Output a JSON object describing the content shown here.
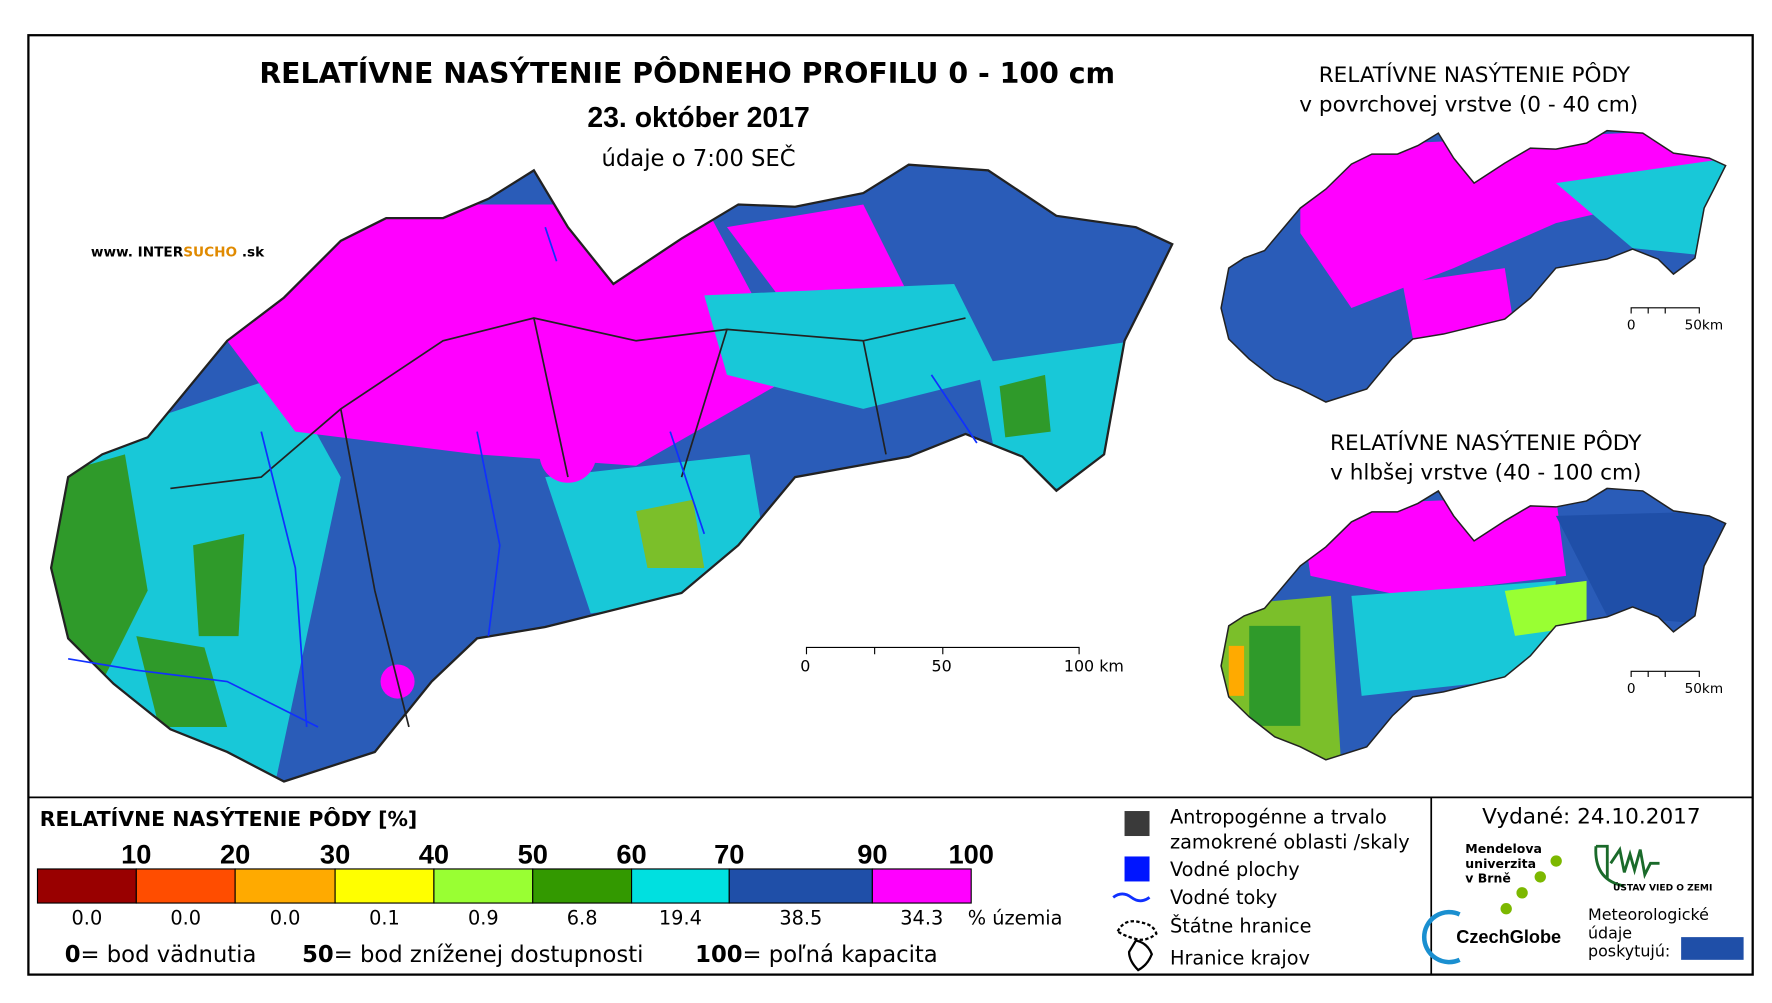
{
  "map": {
    "title": "RELATÍVNE NASÝTENIE PÔDNEHO PROFILU 0 - 100 cm",
    "date": "23. október 2017",
    "subtitle": "údaje o 7:00 SEČ",
    "source": [
      "www. INTER",
      "SUCHO",
      " .sk"
    ],
    "scale_labels": [
      "0",
      "50",
      "100 km"
    ]
  },
  "inset_top": {
    "title": "RELATÍVNE NASÝTENIE PÔDY",
    "subtitle": "v povrchovej vrstve (0 - 40 cm)",
    "scale_labels": [
      "0",
      "50km"
    ]
  },
  "inset_bottom": {
    "title": "RELATÍVNE NASÝTENIE PÔDY",
    "subtitle": "v hlbšej vrstve (40 - 100 cm)",
    "scale_labels": [
      "0",
      "50km"
    ]
  },
  "legend": {
    "title": "RELATÍVNE NASÝTENIE PÔDY [%]",
    "classes": [
      {
        "upper": "10",
        "share": "0.0",
        "color": "#990000"
      },
      {
        "upper": "20",
        "share": "0.0",
        "color": "#ff4d00"
      },
      {
        "upper": "30",
        "share": "0.0",
        "color": "#ffaa00"
      },
      {
        "upper": "40",
        "share": "0.1",
        "color": "#ffff00"
      },
      {
        "upper": "50",
        "share": "0.9",
        "color": "#99ff33"
      },
      {
        "upper": "60",
        "share": "6.8",
        "color": "#339900"
      },
      {
        "upper": "70",
        "share": "19.4",
        "color": "#00e0e0"
      },
      {
        "upper": "90",
        "share": "38.5",
        "color": "#1f4fa8"
      },
      {
        "upper": "100",
        "share": "34.3",
        "color": "#ff00ff"
      }
    ],
    "unit": "% územia",
    "notes": [
      {
        "key": "0",
        "text": "= bod vädnutia"
      },
      {
        "key": "50",
        "text": "= bod zníženej dostupnosti"
      },
      {
        "key": "100",
        "text": "= poľná kapacita"
      }
    ]
  },
  "map_legend": [
    [
      "Antropogénne a trvalo",
      "zamokrené oblasti /skaly"
    ],
    [
      "Vodné plochy"
    ],
    [
      "Vodné toky"
    ],
    [
      "Štátne hranice"
    ],
    [
      "Hranice krajov"
    ]
  ],
  "footer": {
    "issued": "Vydané: 24.10.2017",
    "university": [
      "Mendelova",
      "univerzita",
      "v Brně"
    ],
    "czechglobe": "CzechGlobe",
    "institute": "ÚSTAV VIED O ZEMI",
    "providers": [
      "Meteorologické",
      "údaje",
      "poskytujú:"
    ]
  }
}
